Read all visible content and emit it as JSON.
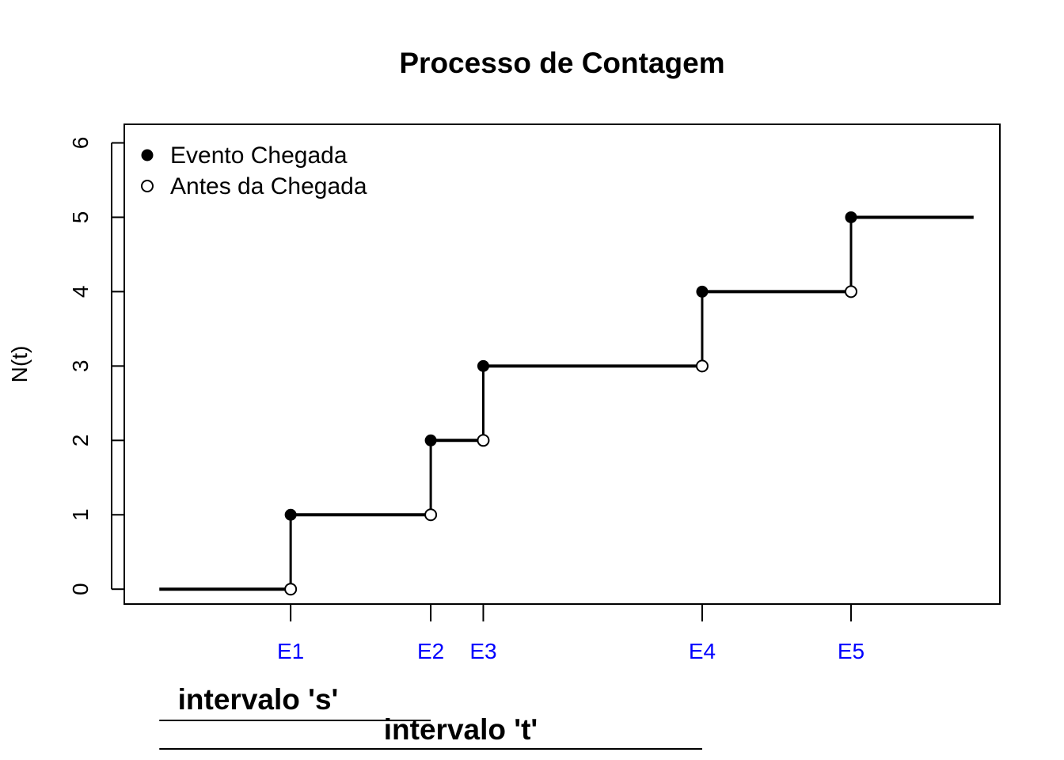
{
  "chart_data": {
    "type": "line",
    "title": "Processo de Contagem",
    "xlabel": "",
    "ylabel": "N(t)",
    "ylim": [
      -0.2,
      6.25
    ],
    "yticks": [
      0,
      1,
      2,
      3,
      4,
      5,
      6
    ],
    "xlim": [
      0,
      1
    ],
    "x_tick_color": "#0000ff",
    "step_start_x": 0.04,
    "step_end_x": 0.97,
    "events": [
      {
        "label": "E1",
        "t": 0.19
      },
      {
        "label": "E2",
        "t": 0.35
      },
      {
        "label": "E3",
        "t": 0.41
      },
      {
        "label": "E4",
        "t": 0.66
      },
      {
        "label": "E5",
        "t": 0.83
      }
    ],
    "legend": {
      "placement": "top-left",
      "entries": [
        {
          "label": "Evento Chegada",
          "marker": "filled-circle"
        },
        {
          "label": "Antes da Chegada",
          "marker": "open-circle"
        }
      ]
    },
    "annotations": [
      {
        "label": "intervalo 's'",
        "from": "start",
        "to": "E2"
      },
      {
        "label": "intervalo 't'",
        "from": "start",
        "to": "E4"
      }
    ],
    "grid": false
  }
}
